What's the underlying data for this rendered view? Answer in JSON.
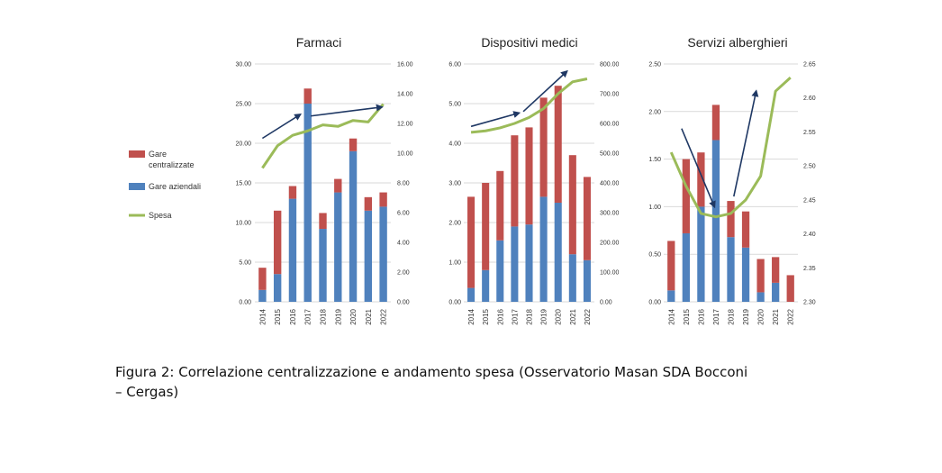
{
  "caption": {
    "line1": "Figura 2: Correlazione centralizzazione e andamento spesa (Osservatorio Masan SDA Bocconi",
    "line2": "– Cergas)"
  },
  "legend": {
    "items": [
      {
        "label_lines": [
          "Gare",
          "centralizzate"
        ],
        "color": "#c0504d",
        "kind": "bar"
      },
      {
        "label_lines": [
          "Gare aziendali"
        ],
        "color": "#4f81bd",
        "kind": "bar"
      },
      {
        "label_lines": [
          "Spesa"
        ],
        "color": "#9bbb59",
        "kind": "line"
      }
    ]
  },
  "colors": {
    "centralizzate": "#c0504d",
    "aziendali": "#4f81bd",
    "spesa": "#9bbb59",
    "arrow": "#1f3864",
    "grid": "#d9d9d9"
  },
  "chart_data": [
    {
      "type": "bar",
      "title": "Farmaci",
      "categories": [
        "2014",
        "2015",
        "2016",
        "2017",
        "2018",
        "2019",
        "2020",
        "2021",
        "2022"
      ],
      "series": [
        {
          "name": "Gare aziendali",
          "values": [
            1.5,
            3.5,
            13.0,
            25.0,
            9.2,
            13.8,
            19.0,
            11.5,
            12.0
          ]
        },
        {
          "name": "Gare centralizzate",
          "values": [
            2.8,
            8.0,
            1.6,
            1.9,
            2.0,
            1.7,
            1.6,
            1.7,
            1.8
          ]
        },
        {
          "name": "Spesa",
          "axis": "right",
          "values": [
            9.0,
            10.5,
            11.2,
            11.5,
            11.9,
            11.8,
            12.2,
            12.1,
            13.3
          ]
        }
      ],
      "left_axis": {
        "min": 0,
        "max": 30,
        "ticks": [
          "0.00",
          "5.00",
          "10.00",
          "15.00",
          "20.00",
          "25.00",
          "30.00"
        ]
      },
      "right_axis": {
        "min": 0,
        "max": 16,
        "ticks": [
          "0.00",
          "2.00",
          "4.00",
          "6.00",
          "8.00",
          "10.00",
          "12.00",
          "14.00",
          "16.00"
        ]
      },
      "arrows": [
        {
          "from": [
            0,
            11.0
          ],
          "to": [
            2.5,
            12.6
          ]
        },
        {
          "from": [
            3.2,
            12.5
          ],
          "to": [
            7.9,
            13.1
          ]
        }
      ]
    },
    {
      "type": "bar",
      "title": "Dispositivi medici",
      "categories": [
        "2014",
        "2015",
        "2016",
        "2017",
        "2018",
        "2019",
        "2020",
        "2021",
        "2022"
      ],
      "series": [
        {
          "name": "Gare aziendali",
          "values": [
            0.35,
            0.8,
            1.55,
            1.9,
            1.95,
            2.65,
            2.5,
            1.2,
            1.05
          ]
        },
        {
          "name": "Gare centralizzate",
          "values": [
            2.3,
            2.2,
            1.75,
            2.3,
            2.45,
            2.5,
            2.95,
            2.5,
            2.1
          ]
        },
        {
          "name": "Spesa",
          "axis": "right",
          "values": [
            570,
            575,
            585,
            600,
            620,
            650,
            700,
            740,
            750
          ]
        }
      ],
      "left_axis": {
        "min": 0,
        "max": 6,
        "ticks": [
          "0.00",
          "1.00",
          "2.00",
          "3.00",
          "4.00",
          "5.00",
          "6.00"
        ]
      },
      "right_axis": {
        "min": 0,
        "max": 800,
        "ticks": [
          "0.00",
          "100.00",
          "200.00",
          "300.00",
          "400.00",
          "500.00",
          "600.00",
          "700.00",
          "800.00"
        ]
      },
      "arrows": [
        {
          "from": [
            0,
            590
          ],
          "to": [
            3.3,
            635
          ]
        },
        {
          "from": [
            3.6,
            640
          ],
          "to": [
            6.6,
            775
          ]
        }
      ]
    },
    {
      "type": "bar",
      "title": "Servizi alberghieri",
      "categories": [
        "2014",
        "2015",
        "2016",
        "2017",
        "2018",
        "2019",
        "2020",
        "2021",
        "2022"
      ],
      "series": [
        {
          "name": "Gare aziendali",
          "values": [
            0.12,
            0.72,
            1.0,
            1.7,
            0.68,
            0.57,
            0.1,
            0.2,
            0.0
          ]
        },
        {
          "name": "Gare centralizzate",
          "values": [
            0.52,
            0.78,
            0.57,
            0.37,
            0.38,
            0.38,
            0.35,
            0.27,
            0.28
          ]
        },
        {
          "name": "Spesa",
          "axis": "right",
          "values": [
            2.52,
            2.47,
            2.43,
            2.425,
            2.43,
            2.45,
            2.485,
            2.61,
            2.63
          ]
        }
      ],
      "left_axis": {
        "min": 0,
        "max": 2.5,
        "ticks": [
          "0.00",
          "0.50",
          "1.00",
          "1.50",
          "2.00",
          "2.50"
        ]
      },
      "right_axis": {
        "min": 2.3,
        "max": 2.65,
        "ticks": [
          "2.30",
          "2.35",
          "2.40",
          "2.45",
          "2.50",
          "2.55",
          "2.60",
          "2.65"
        ]
      },
      "arrows": [
        {
          "from": [
            0.7,
            2.555
          ],
          "to": [
            2.9,
            2.44
          ]
        },
        {
          "from": [
            4.2,
            2.455
          ],
          "to": [
            5.7,
            2.61
          ]
        }
      ]
    }
  ]
}
